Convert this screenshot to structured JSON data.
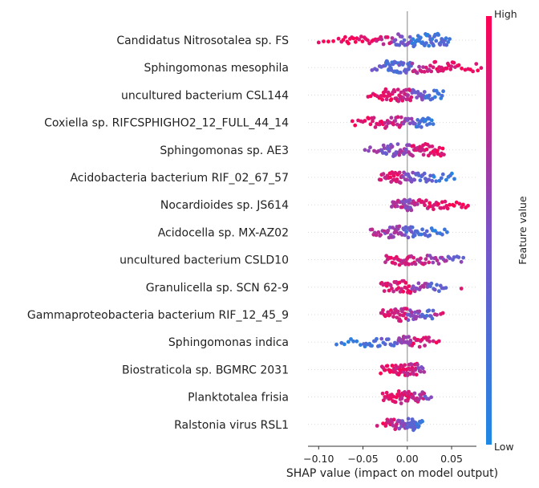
{
  "chart_data": {
    "type": "scatter",
    "subtype": "beeswarm",
    "xlabel": "SHAP value (impact on model output)",
    "xticks": [
      -0.1,
      -0.05,
      0.0,
      0.05
    ],
    "xtick_labels": [
      "−0.10",
      "−0.05",
      "0.00",
      "0.05"
    ],
    "xlim": [
      -0.112,
      0.078
    ],
    "colorbar": {
      "label": "Feature value",
      "high_label": "High",
      "low_label": "Low",
      "high_color": "#ff0052",
      "low_color": "#1e88e5"
    },
    "features": [
      {
        "name": "Candidatus Nitrosotalea sp. FS",
        "segments": [
          [
            -0.1,
            -0.075,
            0.95,
            5
          ],
          [
            -0.075,
            -0.055,
            0.95,
            10
          ],
          [
            -0.055,
            -0.035,
            0.9,
            10
          ],
          [
            -0.035,
            -0.015,
            0.8,
            10
          ],
          [
            -0.015,
            0.005,
            0.45,
            18
          ],
          [
            0.005,
            0.025,
            0.15,
            20
          ],
          [
            0.025,
            0.045,
            0.25,
            22
          ],
          [
            0.045,
            0.05,
            0.1,
            2
          ]
        ]
      },
      {
        "name": "Sphingomonas mesophila",
        "segments": [
          [
            -0.04,
            -0.025,
            0.4,
            6
          ],
          [
            -0.025,
            -0.01,
            0.25,
            22
          ],
          [
            -0.01,
            0.005,
            0.35,
            16
          ],
          [
            0.005,
            0.03,
            0.75,
            16
          ],
          [
            0.03,
            0.055,
            0.9,
            18
          ],
          [
            0.055,
            0.085,
            0.95,
            10
          ]
        ]
      },
      {
        "name": "uncultured bacterium CSL144",
        "segments": [
          [
            -0.045,
            -0.03,
            0.95,
            6
          ],
          [
            -0.03,
            -0.01,
            0.9,
            22
          ],
          [
            -0.01,
            0.005,
            0.8,
            20
          ],
          [
            0.005,
            0.02,
            0.45,
            14
          ],
          [
            0.02,
            0.042,
            0.2,
            14
          ]
        ]
      },
      {
        "name": "Coxiella sp. RIFCSPHIGHO2_12_FULL_44_14",
        "segments": [
          [
            -0.062,
            -0.045,
            0.9,
            6
          ],
          [
            -0.045,
            -0.025,
            0.9,
            14
          ],
          [
            -0.025,
            -0.005,
            0.8,
            18
          ],
          [
            -0.005,
            0.01,
            0.55,
            10
          ],
          [
            0.01,
            0.025,
            0.2,
            14
          ],
          [
            0.025,
            0.03,
            0.15,
            3
          ]
        ]
      },
      {
        "name": "Sphingomonas sp. AE3",
        "segments": [
          [
            -0.048,
            -0.03,
            0.6,
            6
          ],
          [
            -0.03,
            -0.01,
            0.5,
            20
          ],
          [
            -0.01,
            0.005,
            0.6,
            16
          ],
          [
            0.005,
            0.02,
            0.8,
            18
          ],
          [
            0.02,
            0.042,
            0.9,
            18
          ]
        ]
      },
      {
        "name": "Acidobacteria bacterium RIF_02_67_57",
        "segments": [
          [
            -0.032,
            -0.02,
            0.85,
            8
          ],
          [
            -0.02,
            -0.005,
            0.85,
            20
          ],
          [
            -0.005,
            0.01,
            0.5,
            14
          ],
          [
            0.01,
            0.03,
            0.3,
            14
          ],
          [
            0.03,
            0.055,
            0.15,
            10
          ]
        ]
      },
      {
        "name": "Nocardioides sp. JS614",
        "segments": [
          [
            -0.018,
            -0.005,
            0.75,
            12
          ],
          [
            -0.005,
            0.005,
            0.55,
            18
          ],
          [
            0.005,
            0.025,
            0.8,
            14
          ],
          [
            0.025,
            0.045,
            0.9,
            14
          ],
          [
            0.045,
            0.07,
            0.95,
            10
          ]
        ]
      },
      {
        "name": "Acidocella sp. MX-AZ02",
        "segments": [
          [
            -0.042,
            -0.025,
            0.7,
            10
          ],
          [
            -0.025,
            -0.005,
            0.6,
            20
          ],
          [
            -0.005,
            0.01,
            0.35,
            16
          ],
          [
            0.01,
            0.03,
            0.25,
            12
          ],
          [
            0.03,
            0.047,
            0.15,
            6
          ]
        ]
      },
      {
        "name": "uncultured bacterium CSLD10",
        "segments": [
          [
            -0.025,
            -0.01,
            0.85,
            12
          ],
          [
            -0.01,
            0.005,
            0.8,
            16
          ],
          [
            0.005,
            0.025,
            0.8,
            14
          ],
          [
            0.025,
            0.045,
            0.6,
            12
          ],
          [
            0.045,
            0.065,
            0.45,
            8
          ]
        ]
      },
      {
        "name": "Granulicella sp. SCN 62-9",
        "segments": [
          [
            -0.03,
            -0.015,
            0.85,
            12
          ],
          [
            -0.015,
            0.005,
            0.85,
            20
          ],
          [
            0.005,
            0.025,
            0.6,
            14
          ],
          [
            0.025,
            0.045,
            0.35,
            10
          ],
          [
            0.06,
            0.062,
            0.95,
            1
          ]
        ]
      },
      {
        "name": "Gammaproteobacteria bacterium RIF_12_45_9",
        "segments": [
          [
            -0.03,
            -0.015,
            0.9,
            12
          ],
          [
            -0.015,
            0.0,
            0.8,
            20
          ],
          [
            0.0,
            0.015,
            0.55,
            16
          ],
          [
            0.015,
            0.03,
            0.3,
            12
          ],
          [
            0.03,
            0.042,
            0.8,
            4
          ]
        ]
      },
      {
        "name": "Sphingomonas indica",
        "segments": [
          [
            -0.08,
            -0.05,
            0.1,
            8
          ],
          [
            -0.05,
            -0.03,
            0.2,
            12
          ],
          [
            -0.03,
            -0.01,
            0.35,
            10
          ],
          [
            -0.01,
            0.005,
            0.6,
            18
          ],
          [
            0.005,
            0.025,
            0.85,
            14
          ],
          [
            0.025,
            0.038,
            0.9,
            4
          ]
        ]
      },
      {
        "name": "Biostraticola sp. BGMRC 2031",
        "segments": [
          [
            -0.03,
            -0.015,
            0.9,
            12
          ],
          [
            -0.015,
            0.0,
            0.85,
            24
          ],
          [
            0.0,
            0.012,
            0.8,
            18
          ],
          [
            0.012,
            0.02,
            0.6,
            6
          ]
        ]
      },
      {
        "name": "Planktotalea frisia",
        "segments": [
          [
            -0.028,
            -0.01,
            0.9,
            16
          ],
          [
            -0.01,
            0.005,
            0.85,
            22
          ],
          [
            0.005,
            0.02,
            0.75,
            14
          ],
          [
            0.02,
            0.028,
            0.45,
            4
          ]
        ]
      },
      {
        "name": "Ralstonia virus RSL1",
        "segments": [
          [
            -0.035,
            -0.025,
            0.9,
            2
          ],
          [
            -0.025,
            -0.01,
            0.8,
            14
          ],
          [
            -0.01,
            0.0,
            0.55,
            14
          ],
          [
            0.0,
            0.01,
            0.35,
            18
          ],
          [
            0.01,
            0.018,
            0.2,
            8
          ]
        ]
      }
    ]
  }
}
